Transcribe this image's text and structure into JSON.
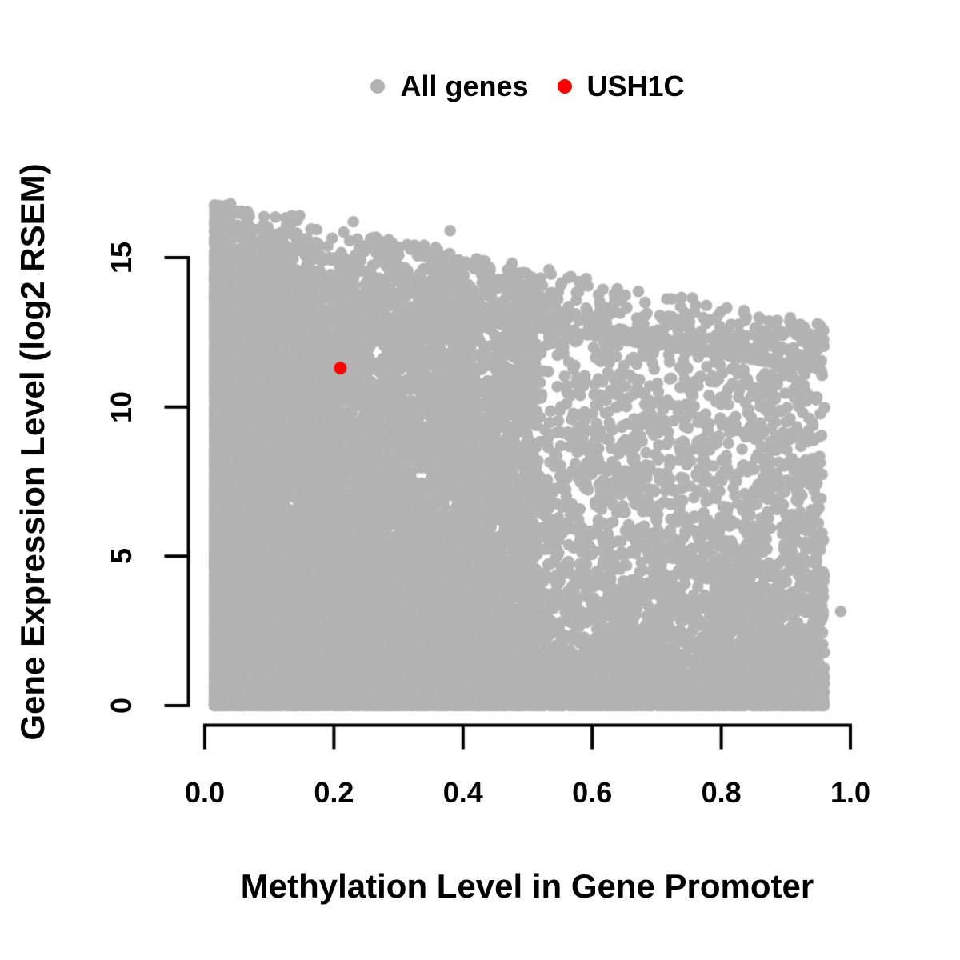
{
  "figure": {
    "background": "#ffffff",
    "axis_color": "#000000",
    "text_color": "#000000"
  },
  "chart_data": {
    "type": "scatter",
    "title": "",
    "xlabel": "Methylation Level in Gene Promoter",
    "ylabel": "Gene Expression Level (log2 RSEM)",
    "xlim": [
      0,
      1
    ],
    "ylim": [
      0,
      16.9
    ],
    "x_ticks": [
      0,
      0.2,
      0.4,
      0.6,
      0.8,
      1.0
    ],
    "x_tick_labels": [
      "0.0",
      "0.2",
      "0.4",
      "0.6",
      "0.8",
      "1.0"
    ],
    "y_ticks": [
      0,
      5,
      10,
      15
    ],
    "y_tick_labels": [
      "0",
      "5",
      "10",
      "15"
    ],
    "grid": false,
    "legend": {
      "position": "top-center",
      "items": [
        {
          "label": "All genes",
          "color": "#b3b3b3"
        },
        {
          "label": "USH1C",
          "color": "#ff0000"
        }
      ]
    },
    "series": [
      {
        "name": "All genes",
        "color": "#b3b3b3",
        "marker": "filled-circle",
        "marker_radius_px": 7.3,
        "summary": "~20000 genes: methylation 0.015-0.96, expression 0-16.8; dense solid mass at low methylation and along the bottom, upper envelope of expression declines from ~16.8 at methylation 0.03 to ~12.5 at methylation 0.95",
        "generator": {
          "seed": 42,
          "n": 20000,
          "x_min": 0.015,
          "clusters": [
            {
              "weight": 0.58,
              "x_span": 0.5,
              "x_pow": 2.2,
              "y_pow": 1.35
            },
            {
              "weight": 0.42,
              "x_span": 0.945,
              "x_pow": 0.8,
              "y_pow": 2.6
            }
          ],
          "dense_top": {
            "intercept": 14.3,
            "slope": -3.2
          },
          "sparse_top": {
            "intercept": 16.9,
            "slope": -4.3
          },
          "fringe_fraction": 0.1,
          "fringe_pow": 2.8,
          "floor_fraction": 0.05,
          "floor_height": 0.35
        },
        "highlight_points": [
          [
            0.04,
            16.8
          ],
          [
            0.05,
            16.55
          ],
          [
            0.135,
            16.4
          ],
          [
            0.147,
            16.4
          ],
          [
            0.23,
            16.2
          ],
          [
            0.38,
            15.9
          ],
          [
            0.985,
            3.15
          ]
        ]
      },
      {
        "name": "USH1C",
        "color": "#ff0000",
        "marker": "filled-circle",
        "marker_radius_px": 8,
        "points": [
          [
            0.21,
            11.3
          ]
        ]
      }
    ]
  }
}
